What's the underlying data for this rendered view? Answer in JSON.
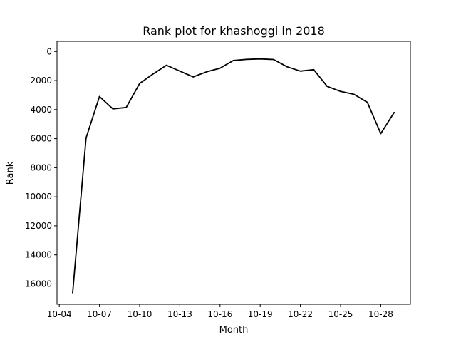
{
  "chart_data": {
    "type": "line",
    "title": "Rank plot for khashoggi in 2018",
    "xlabel": "Month",
    "ylabel": "Rank",
    "y_inverted": true,
    "ylim": [
      0,
      17400
    ],
    "xlim": [
      "10-04",
      "10-29"
    ],
    "grid": false,
    "x_ticks": [
      "10-04",
      "10-07",
      "10-10",
      "10-13",
      "10-16",
      "10-19",
      "10-22",
      "10-25",
      "10-28"
    ],
    "y_ticks": [
      "0",
      "2000",
      "4000",
      "6000",
      "8000",
      "10000",
      "12000",
      "14000",
      "16000"
    ],
    "line_color": "#000000",
    "series": [
      {
        "x": [
          "10-05",
          "10-06",
          "10-07",
          "10-08",
          "10-09",
          "10-10",
          "10-11",
          "10-12",
          "10-13",
          "10-14",
          "10-15",
          "10-16",
          "10-17",
          "10-18",
          "10-19",
          "10-20",
          "10-21",
          "10-22",
          "10-23",
          "10-24",
          "10-25",
          "10-26",
          "10-27",
          "10-28",
          "10-29"
        ],
        "values": [
          16600,
          5950,
          3100,
          3950,
          3850,
          2200,
          1550,
          950,
          1350,
          1750,
          1400,
          1150,
          620,
          540,
          510,
          550,
          1050,
          1350,
          1250,
          2400,
          2750,
          2950,
          3500,
          5650,
          4200
        ]
      }
    ]
  }
}
